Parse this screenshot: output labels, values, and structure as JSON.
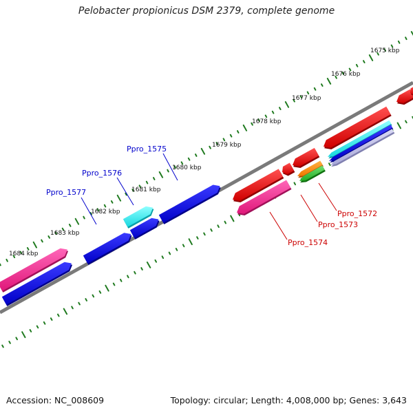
{
  "title": "Pelobacter propionicus DSM 2379, complete genome",
  "accession": "Accession: NC_008609",
  "summary": "Topology: circular; Length: 4,008,000 bp; Genes: 3,643",
  "colors": {
    "axis": "#7a7a7a",
    "ticks": "#1f7a1f",
    "forward_label": "#0000cc",
    "reverse_label": "#cc0000"
  },
  "kbp_ticks": [
    "1675 kbp",
    "1676 kbp",
    "1677 kbp",
    "1678 kbp",
    "1679 kbp",
    "1680 kbp",
    "1681 kbp",
    "1682 kbp",
    "1683 kbp",
    "1684 kbp"
  ],
  "gene_labels": {
    "forward": [
      "Ppro_1575",
      "Ppro_1576",
      "Ppro_1577"
    ],
    "reverse": [
      "Ppro_1572",
      "Ppro_1573",
      "Ppro_1574"
    ]
  }
}
